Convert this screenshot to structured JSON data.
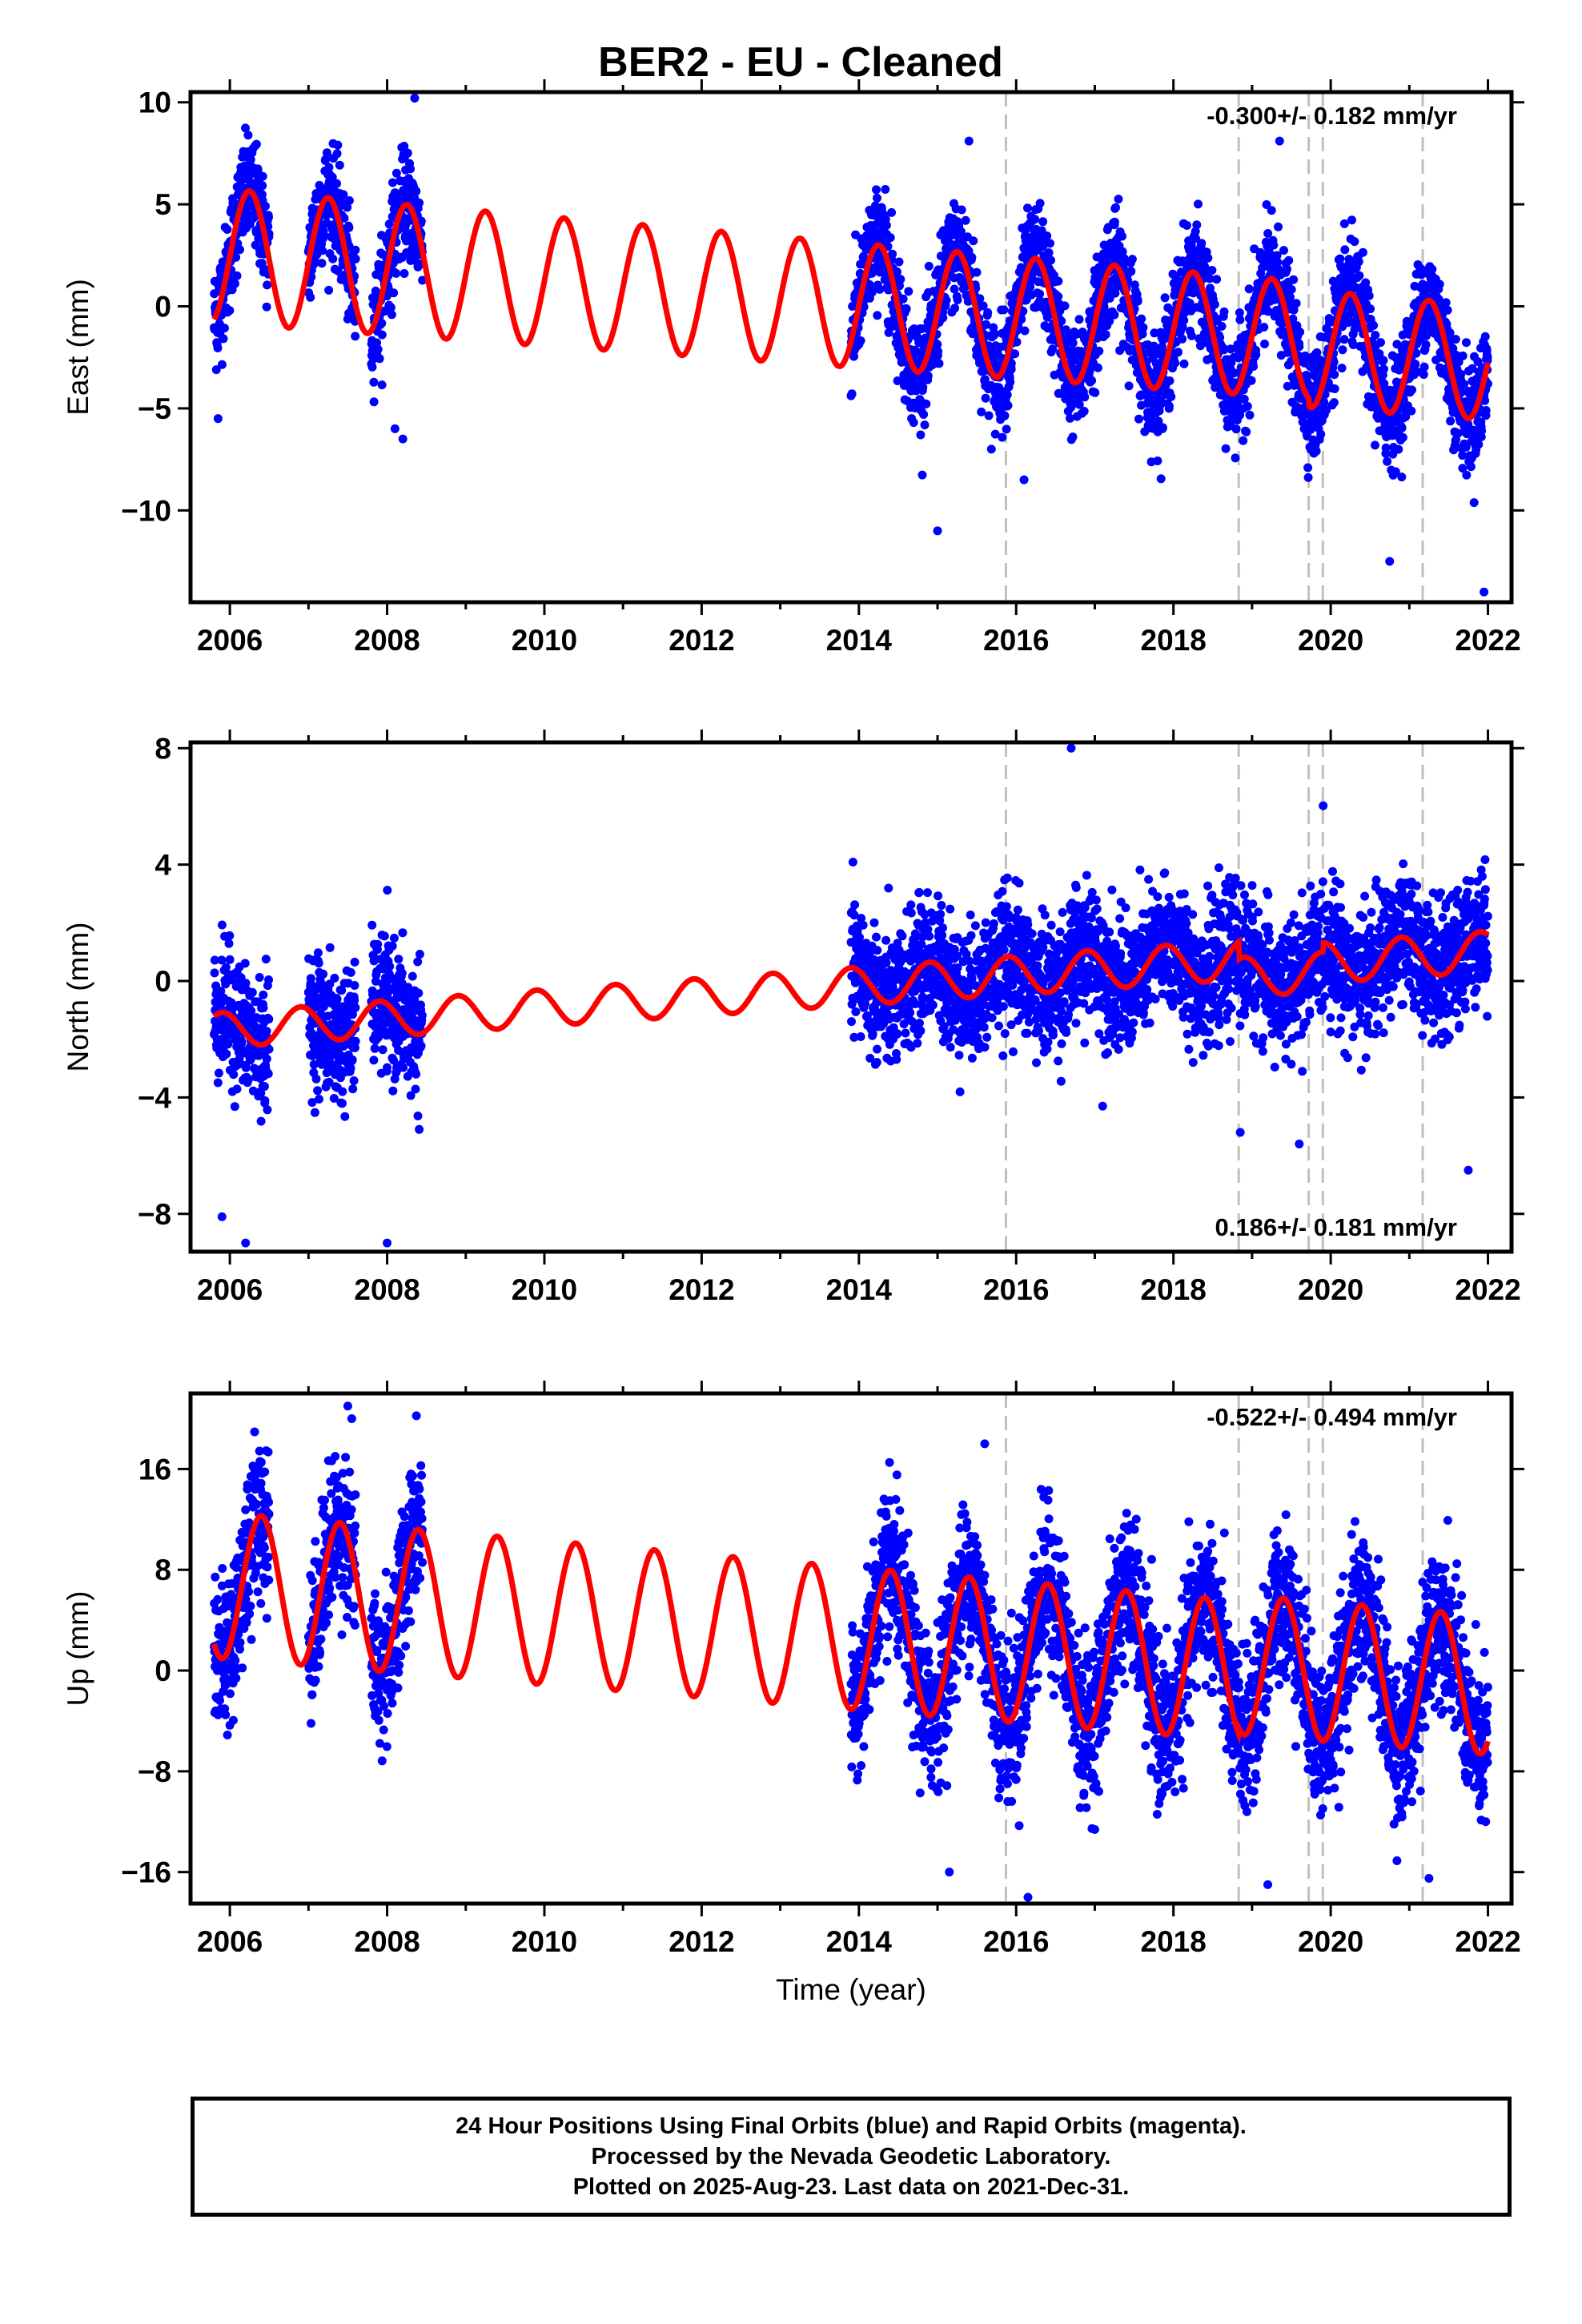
{
  "title": "BER2  - EU - Cleaned",
  "colors": {
    "points": "#0000ff",
    "fit": "#ff0000",
    "steps": "#c0c0c0",
    "frame": "#000000"
  },
  "chart_data": [
    {
      "type": "scatter",
      "ylabel": "East (mm)",
      "xlabel": "",
      "xlim": [
        2005.5,
        2022.3
      ],
      "ylim": [
        -14.5,
        10.5
      ],
      "xticks": [
        2006,
        2008,
        2010,
        2012,
        2014,
        2016,
        2018,
        2020,
        2022
      ],
      "yticks": [
        10,
        5,
        0,
        -5,
        -10
      ],
      "annotation": "-0.300+/- 0.182 mm/yr",
      "annotation_position": "top-right",
      "step_epochs": [
        2015.87,
        2018.83,
        2019.72,
        2019.9,
        2021.17
      ],
      "data_segments": [
        {
          "start": 2005.8,
          "end": 2006.5
        },
        {
          "start": 2007.0,
          "end": 2007.6
        },
        {
          "start": 2007.8,
          "end": 2008.45
        },
        {
          "start": 2013.9,
          "end": 2022.0
        }
      ],
      "series": [
        {
          "name": "24 Hour Positions (blue)",
          "kind": "scatter",
          "noise_sd": 1.3
        },
        {
          "name": "Model fit",
          "kind": "line",
          "model": {
            "t0": 2005.8,
            "offset": 2.5,
            "rate": -0.3,
            "amplitude": 3.2,
            "peak": 0.45,
            "a_start": 3.3,
            "a_end": 2.8,
            "offsets": [
              [
                2015.87,
                0
              ],
              [
                2019.72,
                -0.4
              ]
            ]
          }
        }
      ],
      "outliers": [
        [
          2005.85,
          -5.5
        ],
        [
          2008.1,
          -6.0
        ],
        [
          2008.2,
          -6.5
        ],
        [
          2008.35,
          10.2
        ],
        [
          2015.0,
          -11.0
        ],
        [
          2015.4,
          8.1
        ],
        [
          2019.35,
          8.1
        ],
        [
          2020.75,
          -12.5
        ],
        [
          2021.95,
          -14.0
        ],
        [
          2016.1,
          -8.5
        ]
      ]
    },
    {
      "type": "scatter",
      "ylabel": "North (mm)",
      "xlabel": "",
      "xlim": [
        2005.5,
        2022.3
      ],
      "ylim": [
        -9.3,
        8.2
      ],
      "xticks": [
        2006,
        2008,
        2010,
        2012,
        2014,
        2016,
        2018,
        2020,
        2022
      ],
      "yticks": [
        8,
        4,
        0,
        -4,
        -8
      ],
      "annotation": "0.186+/- 0.181 mm/yr",
      "annotation_position": "bottom-right",
      "step_epochs": [
        2015.87,
        2018.83,
        2019.72,
        2019.9,
        2021.17
      ],
      "data_segments": [
        {
          "start": 2005.8,
          "end": 2006.5
        },
        {
          "start": 2007.0,
          "end": 2007.6
        },
        {
          "start": 2007.8,
          "end": 2008.45
        },
        {
          "start": 2013.9,
          "end": 2022.0
        }
      ],
      "series": [
        {
          "name": "24 Hour Positions (blue)",
          "kind": "scatter",
          "noise_sd": 1.1
        },
        {
          "name": "Model fit",
          "kind": "line",
          "model": {
            "t0": 2005.8,
            "offset": -1.7,
            "rate": 0.186,
            "amplitude": 0.6,
            "peak": 0.1,
            "a_start": 0.6,
            "a_end": 0.7,
            "offsets": [
              [
                2018.83,
                -0.6
              ],
              [
                2019.9,
                0.3
              ]
            ]
          }
        }
      ],
      "outliers": [
        [
          2005.9,
          -8.1
        ],
        [
          2006.2,
          -9.0
        ],
        [
          2008.0,
          -9.0
        ],
        [
          2016.7,
          8.0
        ],
        [
          2021.75,
          -6.5
        ],
        [
          2017.1,
          -4.3
        ],
        [
          2019.6,
          -5.6
        ],
        [
          2018.85,
          -5.2
        ]
      ]
    },
    {
      "type": "scatter",
      "ylabel": "Up (mm)",
      "xlabel": "Time (year)",
      "xlim": [
        2005.5,
        2022.3
      ],
      "ylim": [
        -18.5,
        22.0
      ],
      "xticks": [
        2006,
        2008,
        2010,
        2012,
        2014,
        2016,
        2018,
        2020,
        2022
      ],
      "yticks": [
        16,
        8,
        0,
        -8,
        -16
      ],
      "annotation": "-0.522+/- 0.494 mm/yr",
      "annotation_position": "top-right",
      "step_epochs": [
        2015.87,
        2018.83,
        2019.72,
        2019.9,
        2021.17
      ],
      "data_segments": [
        {
          "start": 2005.8,
          "end": 2006.5
        },
        {
          "start": 2007.0,
          "end": 2007.6
        },
        {
          "start": 2007.8,
          "end": 2008.45
        },
        {
          "start": 2013.9,
          "end": 2022.0
        }
      ],
      "series": [
        {
          "name": "24 Hour Positions (blue)",
          "kind": "scatter",
          "noise_sd": 3.0
        },
        {
          "name": "Model fit",
          "kind": "line",
          "model": {
            "t0": 2005.8,
            "offset": 6.8,
            "rate": -0.522,
            "amplitude": 6.0,
            "peak": 0.6,
            "a_start": 5.8,
            "a_end": 5.5,
            "offsets": [
              [
                2018.83,
                0.5
              ]
            ]
          }
        }
      ],
      "outliers": [
        [
          2007.5,
          21.0
        ],
        [
          2007.55,
          20.0
        ],
        [
          2015.6,
          18.0
        ],
        [
          2016.15,
          -18.0
        ],
        [
          2019.2,
          -17.0
        ],
        [
          2021.25,
          -16.5
        ],
        [
          2015.15,
          -16.0
        ]
      ]
    }
  ],
  "footer": {
    "line1": "24 Hour Positions Using Final Orbits (blue) and Rapid Orbits (magenta).",
    "line2": "Processed by the Nevada Geodetic Laboratory.",
    "line3": "Plotted on 2025-Aug-23. Last data on 2021-Dec-31."
  }
}
